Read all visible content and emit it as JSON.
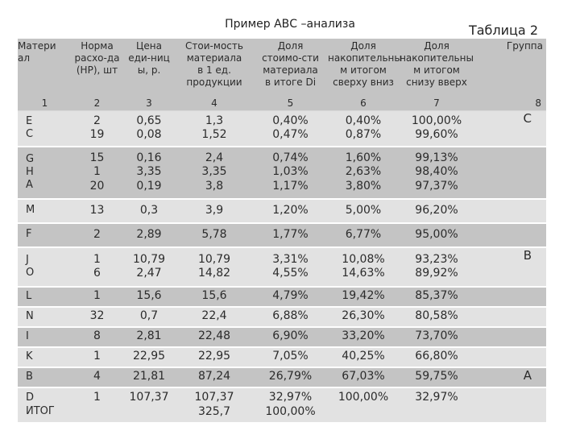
{
  "header": {
    "title": "Пример АВС –анализа",
    "table_label": "Таблица 2"
  },
  "columns": [
    [
      "Матери",
      "ал"
    ],
    [
      "Норма",
      "расхо-да",
      "(НР), шт"
    ],
    [
      "Цена",
      "еди-ниц",
      "ы, р."
    ],
    [
      "Стои-мость",
      "материала",
      "в 1 ед.",
      "продукции"
    ],
    [
      "Доля",
      "стоимо-сти",
      "материала",
      "в итоге Di"
    ],
    [
      "Доля",
      "накопительны",
      "м итогом",
      "сверху вниз"
    ],
    [
      "Доля",
      "накопительны",
      "м итогом",
      "снизу вверх"
    ],
    [
      "Группа"
    ]
  ],
  "column_numbers": [
    "1",
    "2",
    "3",
    "4",
    "5",
    "6",
    "7",
    "8"
  ],
  "rows": [
    {
      "cells": [
        [
          "E",
          "C"
        ],
        [
          "2",
          "19"
        ],
        [
          "0,65",
          "0,08"
        ],
        [
          "1,3",
          "1,52"
        ],
        [
          "0,40%",
          "0,47%"
        ],
        [
          "0,40%",
          "0,87%"
        ],
        [
          "100,00%",
          "99,60%"
        ],
        [
          "C"
        ]
      ]
    },
    {
      "cells": [
        [
          "G",
          "H",
          "A"
        ],
        [
          "15",
          "1",
          "20"
        ],
        [
          "0,16",
          "3,35",
          "0,19"
        ],
        [
          "2,4",
          "3,35",
          "3,8"
        ],
        [
          "0,74%",
          "1,03%",
          "1,17%"
        ],
        [
          "1,60%",
          "2,63%",
          "3,80%"
        ],
        [
          "99,13%",
          "98,40%",
          "97,37%"
        ],
        [
          ""
        ]
      ]
    },
    {
      "cells": [
        [
          "M"
        ],
        [
          "13"
        ],
        [
          "0,3"
        ],
        [
          "3,9"
        ],
        [
          "1,20%"
        ],
        [
          "5,00%"
        ],
        [
          "96,20%"
        ],
        [
          ""
        ]
      ]
    },
    {
      "cells": [
        [
          "F"
        ],
        [
          "2"
        ],
        [
          "2,89"
        ],
        [
          "5,78"
        ],
        [
          "1,77%"
        ],
        [
          "6,77%"
        ],
        [
          "95,00%"
        ],
        [
          ""
        ]
      ]
    },
    {
      "cells": [
        [
          "J",
          "O"
        ],
        [
          "1",
          "6"
        ],
        [
          "10,79",
          "2,47"
        ],
        [
          "10,79",
          "14,82"
        ],
        [
          "3,31%",
          "4,55%"
        ],
        [
          "10,08%",
          "14,63%"
        ],
        [
          "93,23%",
          "89,92%"
        ],
        [
          "B"
        ]
      ]
    },
    {
      "cells": [
        [
          "L"
        ],
        [
          "1"
        ],
        [
          "15,6"
        ],
        [
          "15,6"
        ],
        [
          "4,79%"
        ],
        [
          "19,42%"
        ],
        [
          "85,37%"
        ],
        [
          ""
        ]
      ]
    },
    {
      "cells": [
        [
          "N"
        ],
        [
          "32"
        ],
        [
          "0,7"
        ],
        [
          "22,4"
        ],
        [
          "6,88%"
        ],
        [
          "26,30%"
        ],
        [
          "80,58%"
        ],
        [
          ""
        ]
      ]
    },
    {
      "cells": [
        [
          "I"
        ],
        [
          "8"
        ],
        [
          "2,81"
        ],
        [
          "22,48"
        ],
        [
          "6,90%"
        ],
        [
          "33,20%"
        ],
        [
          "73,70%"
        ],
        [
          ""
        ]
      ]
    },
    {
      "cells": [
        [
          "K"
        ],
        [
          "1"
        ],
        [
          "22,95"
        ],
        [
          "22,95"
        ],
        [
          "7,05%"
        ],
        [
          "40,25%"
        ],
        [
          "66,80%"
        ],
        [
          ""
        ]
      ]
    },
    {
      "cells": [
        [
          "B"
        ],
        [
          "4"
        ],
        [
          "21,81"
        ],
        [
          "87,24"
        ],
        [
          "26,79%"
        ],
        [
          "67,03%"
        ],
        [
          "59,75%"
        ],
        [
          "A"
        ]
      ]
    },
    {
      "cells": [
        [
          "D",
          "ИТОГ"
        ],
        [
          "1",
          ""
        ],
        [
          "107,37",
          ""
        ],
        [
          "107,37",
          "325,7"
        ],
        [
          "32,97%",
          "100,00%"
        ],
        [
          "100,00%",
          ""
        ],
        [
          "32,97%",
          ""
        ],
        [
          ""
        ]
      ]
    }
  ]
}
